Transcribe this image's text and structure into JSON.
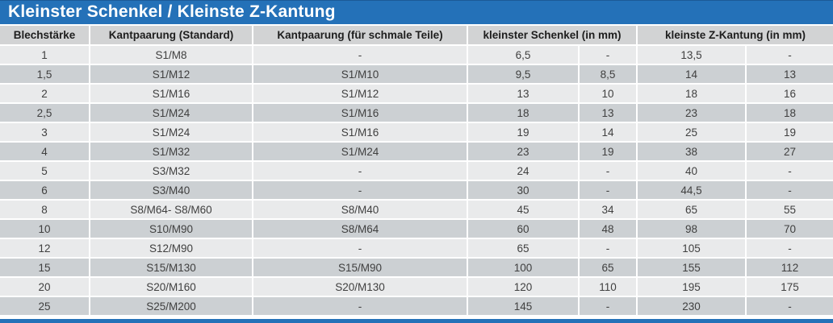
{
  "title": "Kleinster Schenkel / Kleinste Z-Kantung",
  "colors": {
    "accent_blue": "#2471b8",
    "header_bg": "#d2d3d4",
    "row_light": "#e9eaeb",
    "row_dark": "#ccd0d3",
    "body_text": "#404040",
    "title_text": "#ffffff"
  },
  "table": {
    "headers": [
      "Blechstärke",
      "Kantpaarung (Standard)",
      "Kantpaarung (für schmale Teile)",
      "kleinster Schenkel (in mm)",
      "kleinste Z-Kantung (in mm)"
    ],
    "rows": [
      [
        "1",
        "S1/M8",
        "-",
        "6,5",
        "-",
        "13,5",
        "-"
      ],
      [
        "1,5",
        "S1/M12",
        "S1/M10",
        "9,5",
        "8,5",
        "14",
        "13"
      ],
      [
        "2",
        "S1/M16",
        "S1/M12",
        "13",
        "10",
        "18",
        "16"
      ],
      [
        "2,5",
        "S1/M24",
        "S1/M16",
        "18",
        "13",
        "23",
        "18"
      ],
      [
        "3",
        "S1/M24",
        "S1/M16",
        "19",
        "14",
        "25",
        "19"
      ],
      [
        "4",
        "S1/M32",
        "S1/M24",
        "23",
        "19",
        "38",
        "27"
      ],
      [
        "5",
        "S3/M32",
        "-",
        "24",
        "-",
        "40",
        "-"
      ],
      [
        "6",
        "S3/M40",
        "-",
        "30",
        "-",
        "44,5",
        "-"
      ],
      [
        "8",
        "S8/M64- S8/M60",
        "S8/M40",
        "45",
        "34",
        "65",
        "55"
      ],
      [
        "10",
        "S10/M90",
        "S8/M64",
        "60",
        "48",
        "98",
        "70"
      ],
      [
        "12",
        "S12/M90",
        "-",
        "65",
        "-",
        "105",
        "-"
      ],
      [
        "15",
        "S15/M130",
        "S15/M90",
        "100",
        "65",
        "155",
        "112"
      ],
      [
        "20",
        "S20/M160",
        "S20/M130",
        "120",
        "110",
        "195",
        "175"
      ],
      [
        "25",
        "S25/M200",
        "-",
        "145",
        "-",
        "230",
        "-"
      ]
    ]
  }
}
